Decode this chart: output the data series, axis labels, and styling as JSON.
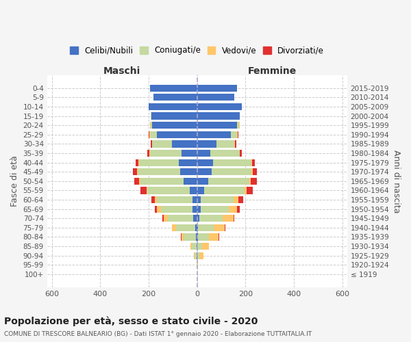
{
  "age_groups": [
    "100+",
    "95-99",
    "90-94",
    "85-89",
    "80-84",
    "75-79",
    "70-74",
    "65-69",
    "60-64",
    "55-59",
    "50-54",
    "45-49",
    "40-44",
    "35-39",
    "30-34",
    "25-29",
    "20-24",
    "15-19",
    "10-14",
    "5-9",
    "0-4"
  ],
  "birth_years": [
    "≤ 1919",
    "1920-1924",
    "1925-1929",
    "1930-1934",
    "1935-1939",
    "1940-1944",
    "1945-1949",
    "1950-1954",
    "1955-1959",
    "1960-1964",
    "1965-1969",
    "1970-1974",
    "1975-1979",
    "1980-1984",
    "1985-1989",
    "1990-1994",
    "1995-1999",
    "2000-2004",
    "2005-2009",
    "2010-2014",
    "2015-2019"
  ],
  "males": {
    "celibi": [
      0,
      0,
      2,
      2,
      5,
      8,
      15,
      20,
      20,
      30,
      55,
      70,
      75,
      65,
      105,
      165,
      185,
      190,
      200,
      180,
      195
    ],
    "coniugati": [
      0,
      2,
      8,
      20,
      50,
      80,
      105,
      130,
      145,
      175,
      180,
      175,
      165,
      130,
      80,
      30,
      8,
      2,
      0,
      0,
      0
    ],
    "vedovi": [
      0,
      0,
      2,
      5,
      10,
      15,
      18,
      15,
      10,
      5,
      5,
      3,
      2,
      2,
      2,
      2,
      2,
      0,
      0,
      0,
      0
    ],
    "divorziati": [
      0,
      0,
      0,
      0,
      2,
      2,
      5,
      10,
      15,
      25,
      20,
      18,
      12,
      8,
      5,
      3,
      0,
      0,
      0,
      0,
      0
    ]
  },
  "females": {
    "nubili": [
      0,
      0,
      2,
      2,
      5,
      5,
      10,
      15,
      15,
      30,
      45,
      60,
      65,
      55,
      80,
      140,
      165,
      175,
      185,
      155,
      165
    ],
    "coniugate": [
      0,
      2,
      8,
      18,
      45,
      65,
      95,
      115,
      135,
      165,
      170,
      165,
      160,
      120,
      75,
      25,
      8,
      2,
      0,
      0,
      0
    ],
    "vedove": [
      0,
      3,
      15,
      30,
      40,
      45,
      45,
      35,
      20,
      10,
      8,
      5,
      3,
      2,
      2,
      2,
      2,
      0,
      0,
      0,
      0
    ],
    "divorziate": [
      0,
      0,
      0,
      0,
      2,
      2,
      5,
      10,
      20,
      25,
      25,
      18,
      10,
      8,
      5,
      3,
      0,
      0,
      0,
      0,
      0
    ]
  },
  "colors": {
    "celibi": "#4472C4",
    "coniugati": "#c5d9a0",
    "vedovi": "#ffc66a",
    "divorziati": "#e03030"
  },
  "xlim": 620,
  "title": "Popolazione per età, sesso e stato civile - 2020",
  "subtitle": "COMUNE DI TRESCORE BALNEARIO (BG) - Dati ISTAT 1° gennaio 2020 - Elaborazione TUTTAITALIA.IT",
  "xlabel_left": "Maschi",
  "xlabel_right": "Femmine",
  "ylabel_left": "Fasce di età",
  "ylabel_right": "Anni di nascita",
  "legend_labels": [
    "Celibi/Nubili",
    "Coniugati/e",
    "Vedovi/e",
    "Divorziati/e"
  ],
  "bg_color": "#f5f5f5",
  "plot_bg": "#ffffff",
  "grid_color": "#cccccc"
}
